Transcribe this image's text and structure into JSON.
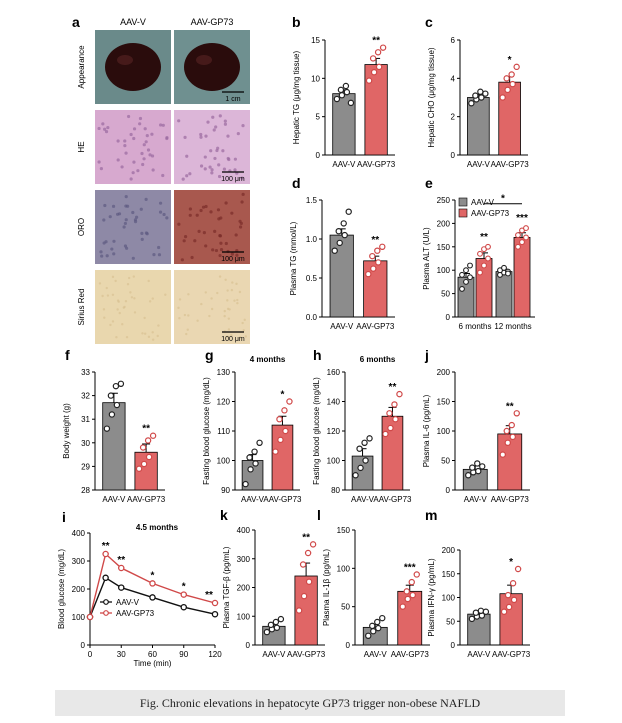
{
  "colors": {
    "control": "#8c8c8c",
    "treatment": "#e06666",
    "point_control": "#222222",
    "point_treatment": "#d04848",
    "axis": "#000000"
  },
  "caption": "Fig.  Chronic elevations in hepatocyte GP73 trigger non-obese NAFLD",
  "panel_a": {
    "letter": "a",
    "col_labels": [
      "AAV-V",
      "AAV-GP73"
    ],
    "row_labels": [
      "Appearance",
      "HE",
      "ORO",
      "Sirius Red"
    ],
    "scale_bars": [
      "1 cm",
      "100 μm",
      "100 μm",
      "100 μm"
    ],
    "tile_colors": {
      "appearance": [
        "#6a8a8a",
        "#6f9090"
      ],
      "he": [
        "#d7a9cf",
        "#dcb6d8"
      ],
      "oro": [
        "#8e89a6",
        "#a8584e"
      ],
      "sirius": [
        "#e9d7ae",
        "#ead7b2"
      ]
    }
  },
  "chart_data": [
    {
      "id": "b",
      "type": "bar",
      "letter": "b",
      "ylabel": "Hepatic TG (μg/mg tissue)",
      "ylim": [
        0,
        15
      ],
      "ticks": [
        0,
        5,
        10,
        15
      ],
      "categories": [
        "AAV-V",
        "AAV-GP73"
      ],
      "values": [
        8.0,
        11.8
      ],
      "errors": [
        0.5,
        0.8
      ],
      "points": [
        [
          7.3,
          7.8,
          8.2,
          8.5,
          9.0,
          6.8
        ],
        [
          9.7,
          10.8,
          11.5,
          12.6,
          13.4,
          14.0
        ]
      ],
      "annotations": [
        {
          "text": "**",
          "bar": 1
        }
      ]
    },
    {
      "id": "c",
      "type": "bar",
      "letter": "c",
      "ylabel": "Hepatic CHO (μg/mg tissue)",
      "ylim": [
        0,
        6
      ],
      "ticks": [
        0,
        2,
        4,
        6
      ],
      "categories": [
        "AAV-V",
        "AAV-GP73"
      ],
      "values": [
        3.0,
        3.8
      ],
      "errors": [
        0.15,
        0.3
      ],
      "points": [
        [
          2.7,
          2.9,
          3.0,
          3.1,
          3.3,
          3.2
        ],
        [
          3.0,
          3.4,
          3.7,
          4.0,
          4.2,
          4.6
        ]
      ],
      "annotations": [
        {
          "text": "*",
          "bar": 1
        }
      ]
    },
    {
      "id": "d",
      "type": "bar",
      "letter": "d",
      "ylabel": "Plasma TG (mmol/L)",
      "ylim": [
        0,
        1.5
      ],
      "ticks": [
        0.0,
        0.5,
        1.0,
        1.5
      ],
      "categories": [
        "AAV-V",
        "AAV-GP73"
      ],
      "values": [
        1.05,
        0.72
      ],
      "errors": [
        0.08,
        0.06
      ],
      "points": [
        [
          0.85,
          0.95,
          1.05,
          1.1,
          1.2,
          1.35
        ],
        [
          0.55,
          0.62,
          0.7,
          0.78,
          0.85,
          0.9
        ]
      ],
      "annotations": [
        {
          "text": "**",
          "bar": 1
        }
      ]
    },
    {
      "id": "e",
      "type": "bar",
      "letter": "e",
      "ylabel": "Plasma ALT (U/L)",
      "ylim": [
        0,
        250
      ],
      "ticks": [
        0,
        50,
        100,
        150,
        200,
        250
      ],
      "categories": [
        "6 months",
        "12 months"
      ],
      "series": [
        {
          "name": "AAV-V",
          "values": [
            85,
            97
          ],
          "errors": [
            8,
            5
          ]
        },
        {
          "name": "AAV-GP73",
          "values": [
            125,
            170
          ],
          "errors": [
            12,
            10
          ]
        }
      ],
      "points": [
        [
          [
            60,
            75,
            85,
            90,
            100,
            110
          ],
          [
            90,
            95,
            97,
            100,
            105,
            93
          ]
        ],
        [
          [
            95,
            110,
            125,
            135,
            145,
            150
          ],
          [
            150,
            160,
            170,
            175,
            185,
            190
          ]
        ]
      ],
      "annotations": [
        {
          "text": "**",
          "group": 0,
          "series": 1
        },
        {
          "text": "***",
          "group": 1,
          "series": 1
        },
        {
          "text": "*",
          "bracket": true
        }
      ]
    },
    {
      "id": "f",
      "type": "bar",
      "letter": "f",
      "ylabel": "Body weight (g)",
      "ylim": [
        28,
        33
      ],
      "ticks": [
        28,
        29,
        30,
        31,
        32,
        33
      ],
      "categories": [
        "AAV-V",
        "AAV-GP73"
      ],
      "values": [
        31.7,
        29.6
      ],
      "errors": [
        0.4,
        0.35
      ],
      "points": [
        [
          30.6,
          31.2,
          31.6,
          32.0,
          32.4,
          32.5
        ],
        [
          28.9,
          29.1,
          29.4,
          29.8,
          30.1,
          30.3
        ]
      ],
      "annotations": [
        {
          "text": "**",
          "bar": 1
        }
      ]
    },
    {
      "id": "g",
      "type": "bar",
      "letter": "g",
      "title": "4 months",
      "ylabel": "Fasting blood glucose (mg/dL)",
      "ylim": [
        90,
        130
      ],
      "ticks": [
        90,
        100,
        110,
        120,
        130
      ],
      "categories": [
        "AAV-V",
        "AAV-GP73"
      ],
      "values": [
        100,
        112
      ],
      "errors": [
        2,
        3
      ],
      "points": [
        [
          92,
          97,
          99,
          101,
          103,
          106
        ],
        [
          103,
          107,
          110,
          114,
          117,
          120
        ]
      ],
      "annotations": [
        {
          "text": "*",
          "bar": 1
        }
      ]
    },
    {
      "id": "h",
      "type": "bar",
      "letter": "h",
      "title": "6 months",
      "ylabel": "Fasting blood glucose (mg/dL)",
      "ylim": [
        80,
        160
      ],
      "ticks": [
        80,
        100,
        120,
        140,
        160
      ],
      "categories": [
        "AAV-V",
        "AAV-GP73"
      ],
      "values": [
        103,
        130
      ],
      "errors": [
        5,
        6
      ],
      "points": [
        [
          90,
          95,
          100,
          108,
          112,
          115
        ],
        [
          118,
          122,
          128,
          132,
          138,
          145
        ]
      ],
      "annotations": [
        {
          "text": "**",
          "bar": 1
        }
      ]
    },
    {
      "id": "j",
      "type": "bar",
      "letter": "j",
      "ylabel": "Plasma IL-6 (pg/mL)",
      "ylim": [
        0,
        200
      ],
      "ticks": [
        0,
        50,
        100,
        150,
        200
      ],
      "categories": [
        "AAV-V",
        "AAV-GP73"
      ],
      "values": [
        35,
        95
      ],
      "errors": [
        6,
        14
      ],
      "points": [
        [
          25,
          30,
          32,
          38,
          45,
          40
        ],
        [
          60,
          80,
          90,
          100,
          110,
          130
        ]
      ],
      "annotations": [
        {
          "text": "**",
          "bar": 1
        }
      ]
    },
    {
      "id": "i",
      "type": "line",
      "letter": "i",
      "title": "4.5 months",
      "xlabel": "Time (min)",
      "ylabel": "Blood glucose (mg/dL)",
      "xlim": [
        0,
        120
      ],
      "ylim": [
        0,
        400
      ],
      "xticks": [
        0,
        30,
        60,
        90,
        120
      ],
      "yticks": [
        0,
        100,
        200,
        300,
        400
      ],
      "x": [
        0,
        15,
        30,
        60,
        90,
        120
      ],
      "series": [
        {
          "name": "AAV-V",
          "values": [
            100,
            240,
            205,
            170,
            135,
            110
          ]
        },
        {
          "name": "AAV-GP73",
          "values": [
            100,
            325,
            275,
            220,
            180,
            150
          ]
        }
      ],
      "annotations": [
        {
          "text": "**",
          "x": 15
        },
        {
          "text": "**",
          "x": 30
        },
        {
          "text": "*",
          "x": 60
        },
        {
          "text": "*",
          "x": 90
        },
        {
          "text": "**",
          "x": 120
        }
      ]
    },
    {
      "id": "k",
      "type": "bar",
      "letter": "k",
      "ylabel": "Plasma TGF-β (pg/mL)",
      "ylim": [
        0,
        400
      ],
      "ticks": [
        0,
        100,
        200,
        300,
        400
      ],
      "categories": [
        "AAV-V",
        "AAV-GP73"
      ],
      "values": [
        65,
        240
      ],
      "errors": [
        10,
        45
      ],
      "points": [
        [
          45,
          55,
          60,
          70,
          80,
          90
        ],
        [
          120,
          170,
          220,
          280,
          320,
          350
        ]
      ],
      "annotations": [
        {
          "text": "**",
          "bar": 1
        }
      ]
    },
    {
      "id": "l",
      "type": "bar",
      "letter": "l",
      "ylabel": "Plasma IL-1β (pg/mL)",
      "ylim": [
        0,
        150
      ],
      "ticks": [
        0,
        50,
        100,
        150
      ],
      "categories": [
        "AAV-V",
        "AAV-GP73"
      ],
      "values": [
        23,
        70
      ],
      "errors": [
        4,
        8
      ],
      "points": [
        [
          12,
          18,
          22,
          25,
          30,
          35
        ],
        [
          50,
          60,
          65,
          70,
          82,
          92
        ]
      ],
      "annotations": [
        {
          "text": "***",
          "bar": 1
        }
      ]
    },
    {
      "id": "m",
      "type": "bar",
      "letter": "m",
      "ylabel": "Plasma IFN-γ (pg/mL)",
      "ylim": [
        0,
        200
      ],
      "ticks": [
        0,
        50,
        100,
        150,
        200
      ],
      "categories": [
        "AAV-V",
        "AAV-GP73"
      ],
      "values": [
        65,
        108
      ],
      "errors": [
        5,
        18
      ],
      "points": [
        [
          55,
          60,
          62,
          68,
          72,
          70
        ],
        [
          70,
          80,
          95,
          105,
          130,
          160
        ]
      ],
      "annotations": [
        {
          "text": "*",
          "bar": 1
        }
      ]
    }
  ]
}
